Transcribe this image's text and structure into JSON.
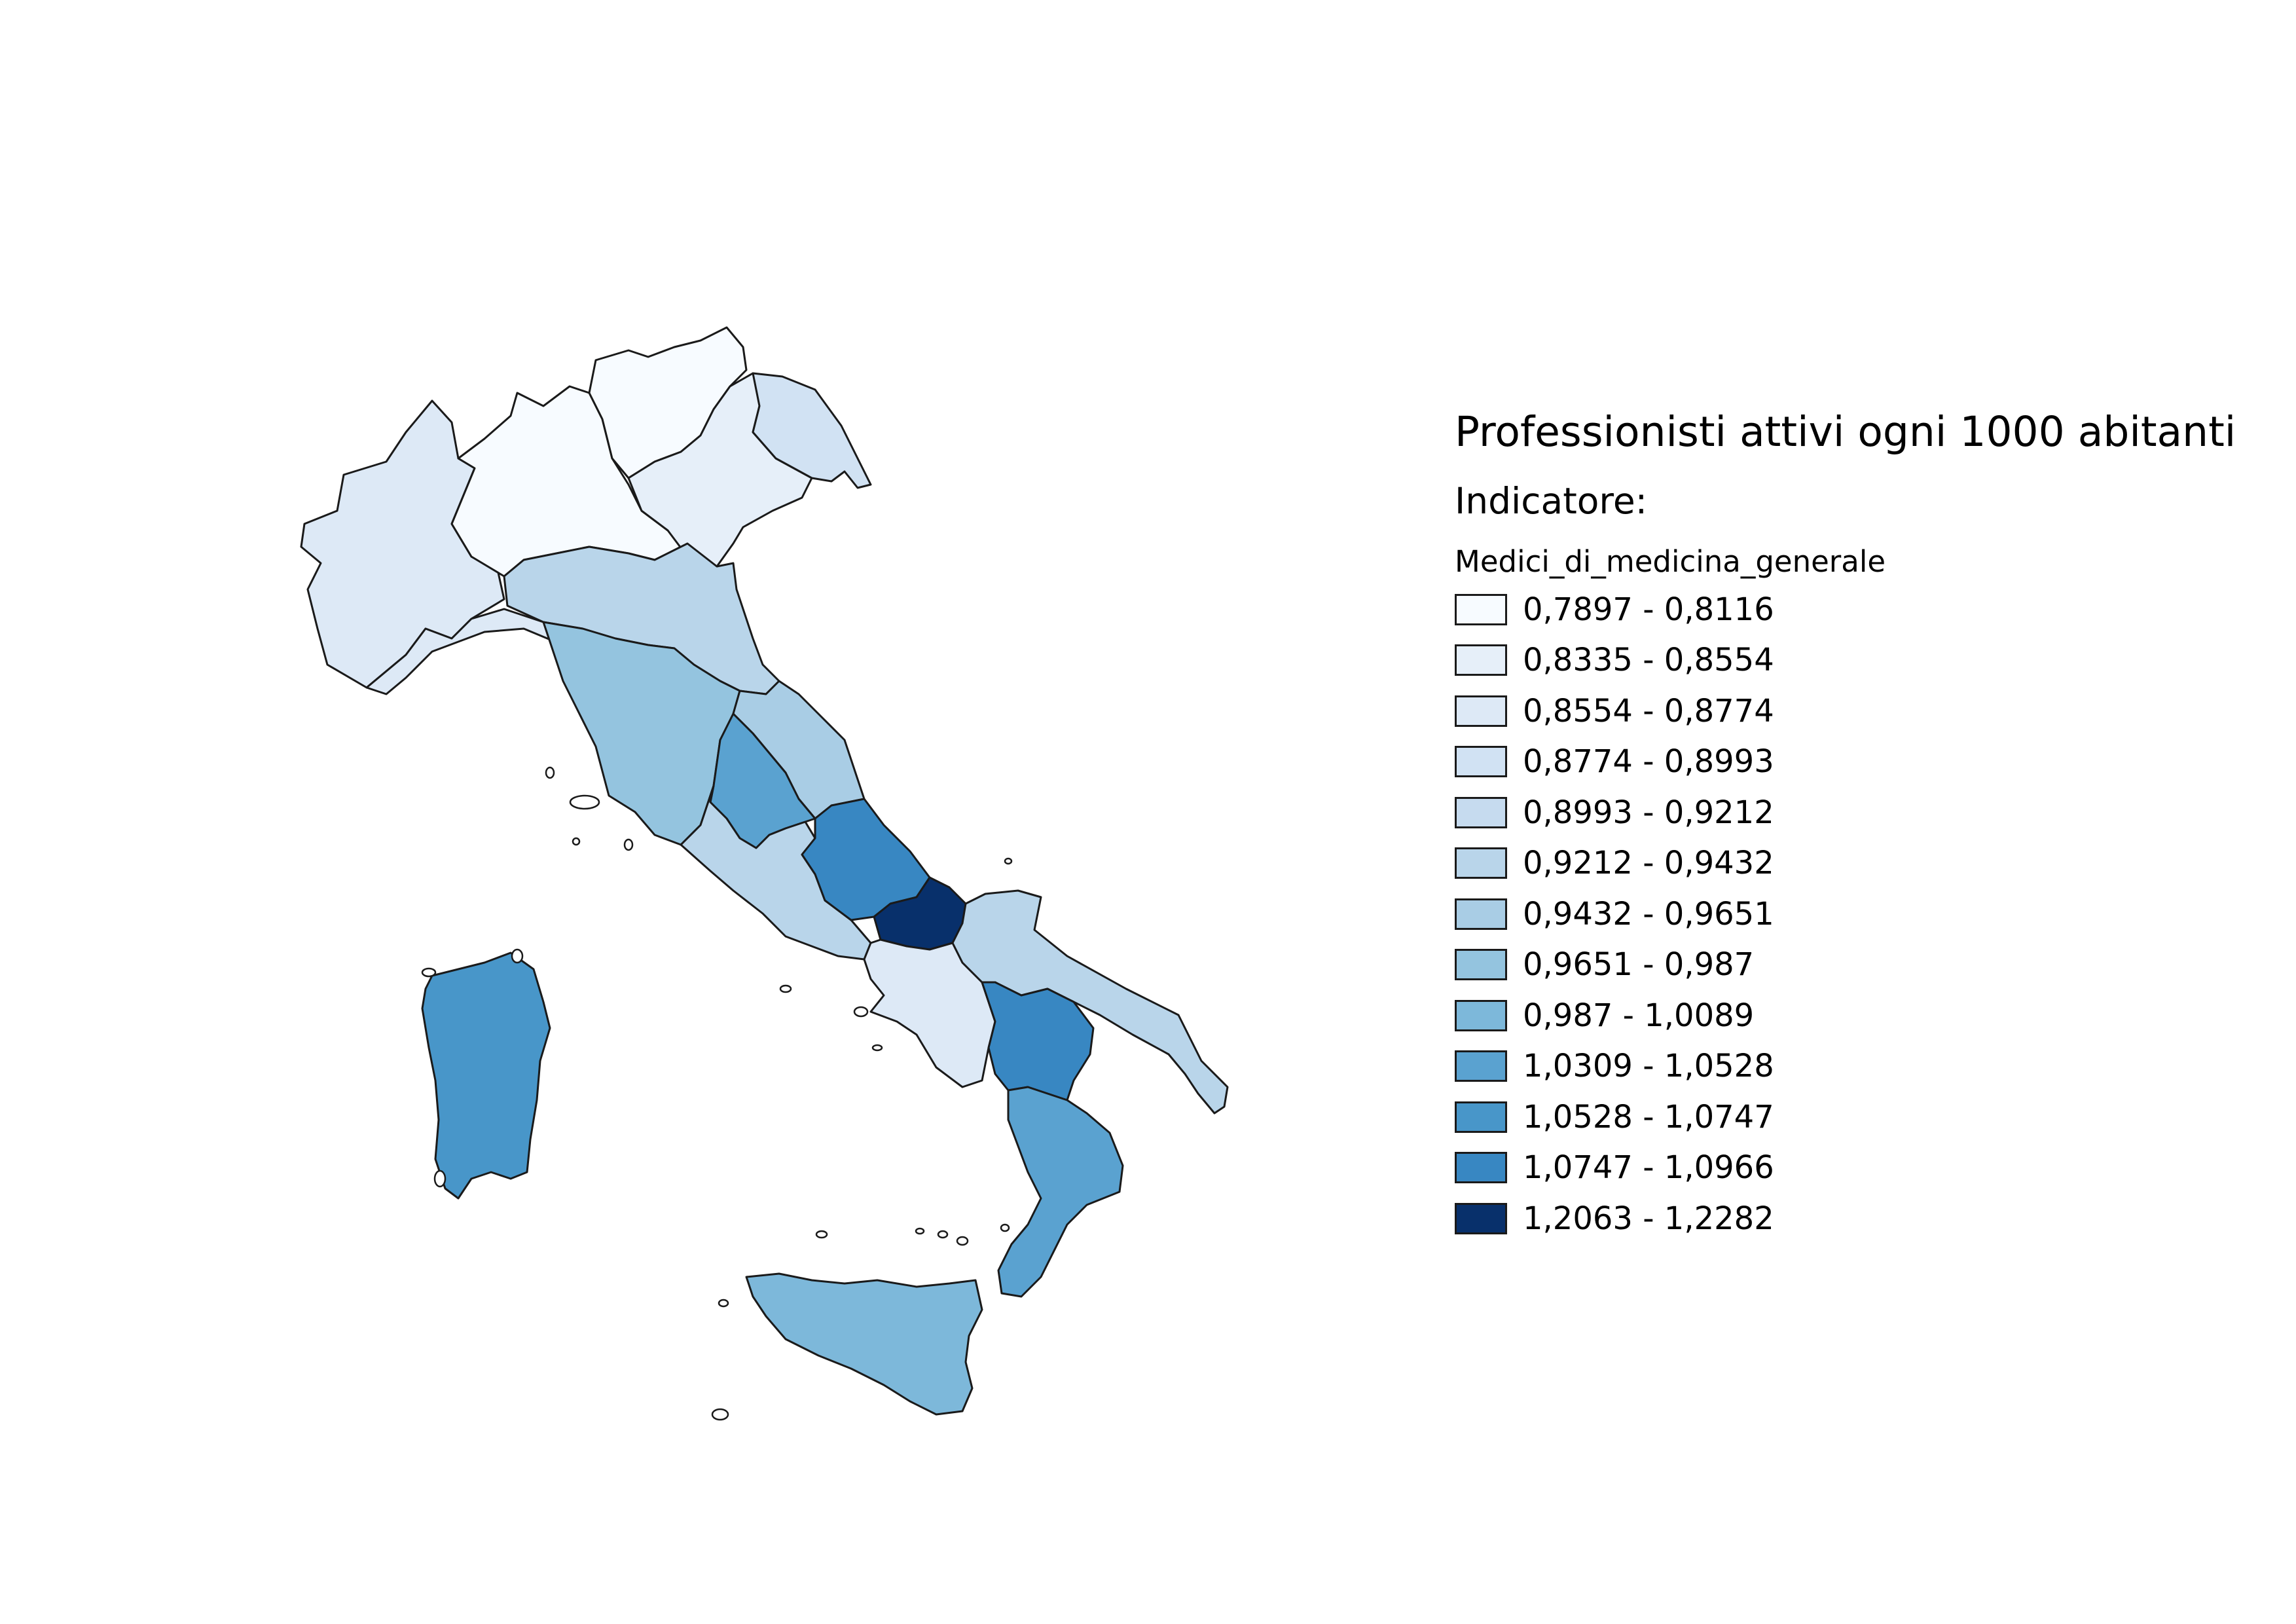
{
  "map": {
    "title": "Professionisti attivi ogni 1000 abitanti",
    "subtitle": "Indicatore:",
    "field_name": "Medici_di_medicina_generale",
    "classes": [
      {
        "label": "0,7897 - 0,8116",
        "color": "#f7fbff"
      },
      {
        "label": "0,8335 - 0,8554",
        "color": "#e6eff9"
      },
      {
        "label": "0,8554 - 0,8774",
        "color": "#dde9f6"
      },
      {
        "label": "0,8774 - 0,8993",
        "color": "#d1e2f3"
      },
      {
        "label": "0,8993 - 0,9212",
        "color": "#c6dbef"
      },
      {
        "label": "0,9212 - 0,9432",
        "color": "#b9d5ea"
      },
      {
        "label": "0,9432 - 0,9651",
        "color": "#a9cde5"
      },
      {
        "label": "0,9651 - 0,987",
        "color": "#94c4df"
      },
      {
        "label": "0,987 - 1,0089",
        "color": "#7db8da"
      },
      {
        "label": "1,0309 - 1,0528",
        "color": "#5aa2d0"
      },
      {
        "label": "1,0528 - 1,0747",
        "color": "#4896c9"
      },
      {
        "label": "1,0747 - 1,0966",
        "color": "#3887c2"
      },
      {
        "label": "1,2063 - 1,2282",
        "color": "#08306b"
      }
    ]
  }
}
